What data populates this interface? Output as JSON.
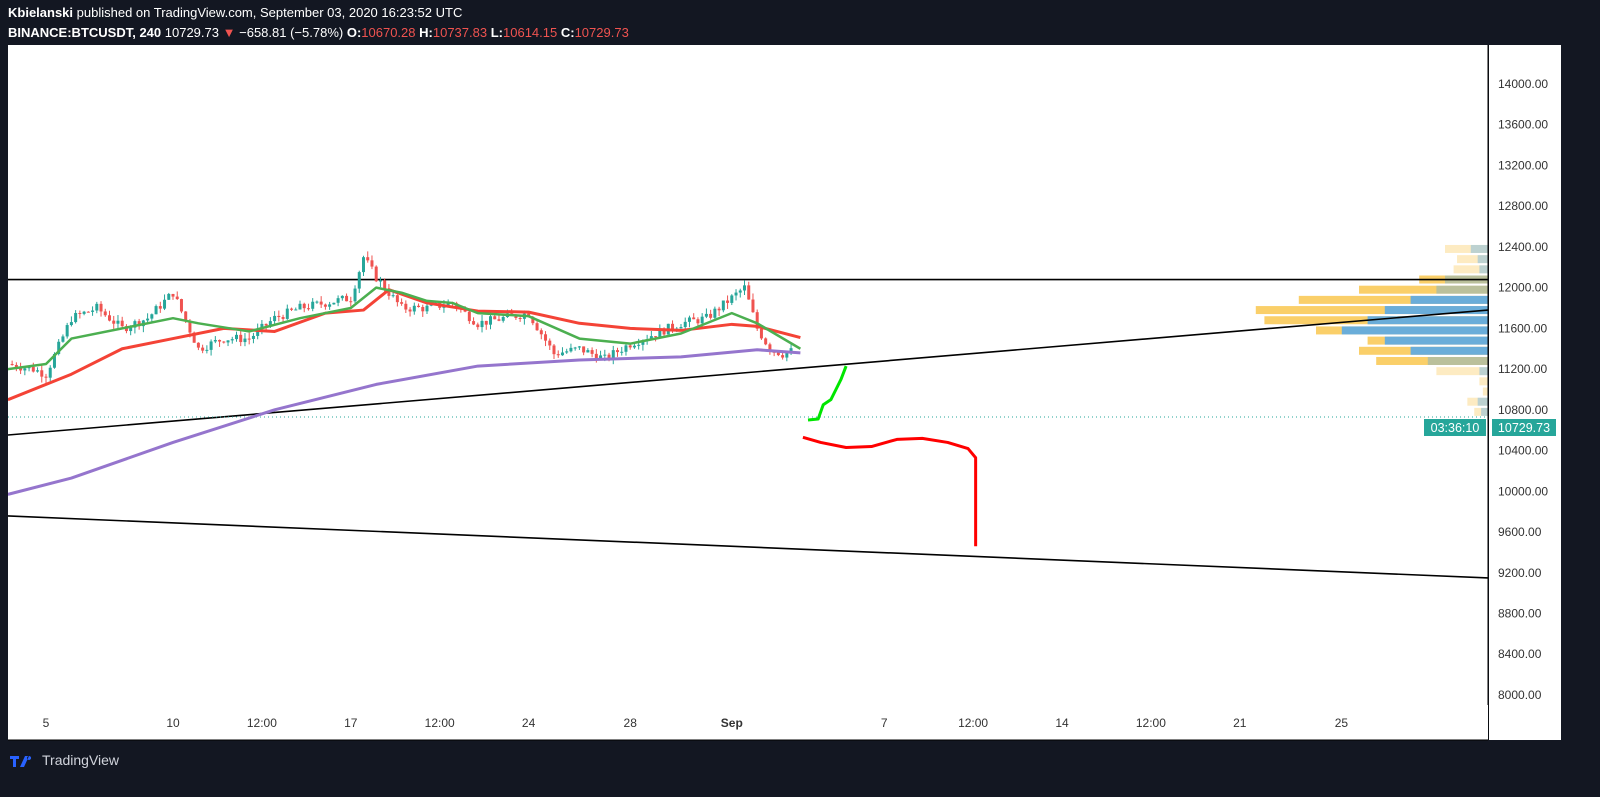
{
  "header": {
    "author": "Kbielanski",
    "published": "published on TradingView.com, September 03, 2020 16:23:52 UTC",
    "symbol": "BINANCE:BTCUSDT, 240",
    "last": "10729.73",
    "change": "−658.81 (−5.78%)",
    "o_label": "O:",
    "o": "10670.28",
    "h_label": "H:",
    "h": "10737.83",
    "l_label": "L:",
    "l": "10614.15",
    "c_label": "C:",
    "c": "10729.73"
  },
  "footer": {
    "brand": "TradingView",
    "icon": "tradingview-logo-icon"
  },
  "colors": {
    "bg": "#131722",
    "plot": "#ffffff",
    "up": "#26a69a",
    "down": "#ef5350",
    "ema_fast": "#4caf50",
    "ema_slow": "#f44336",
    "ma_long": "#9575cd",
    "drawing_up": "#00e600",
    "drawing_down": "#ff0000",
    "last_price": "#26a69a",
    "vp_up": "#5aa9e6",
    "vp_down": "#f9c74f"
  },
  "chart_data": {
    "type": "candlestick",
    "timeframe": "240",
    "y_ticks": [
      "14000.00",
      "13600.00",
      "13200.00",
      "12800.00",
      "12400.00",
      "12000.00",
      "11600.00",
      "11200.00",
      "10800.00",
      "10400.00",
      "10000.00",
      "9600.00",
      "9200.00",
      "8800.00",
      "8400.00",
      "8000.00"
    ],
    "ylim": [
      7850,
      14350
    ],
    "x_ticks": [
      {
        "day": 5,
        "label": "5"
      },
      {
        "day": 10,
        "label": "10"
      },
      {
        "day": 13.5,
        "label": "12:00"
      },
      {
        "day": 17,
        "label": "17"
      },
      {
        "day": 20.5,
        "label": "12:00"
      },
      {
        "day": 24,
        "label": "24"
      },
      {
        "day": 28,
        "label": "28"
      },
      {
        "day": 32,
        "label": "Sep"
      },
      {
        "day": 38,
        "label": "7"
      },
      {
        "day": 41.5,
        "label": "12:00"
      },
      {
        "day": 45,
        "label": "14"
      },
      {
        "day": 48.5,
        "label": "12:00"
      },
      {
        "day": 52,
        "label": "21"
      },
      {
        "day": 56,
        "label": "25"
      }
    ],
    "price_path": [
      [
        3.5,
        11250
      ],
      [
        4.5,
        11200
      ],
      [
        5,
        11150
      ],
      [
        6,
        11700
      ],
      [
        7,
        11800
      ],
      [
        8,
        11600
      ],
      [
        9,
        11700
      ],
      [
        10,
        11950
      ],
      [
        11,
        11400
      ],
      [
        12,
        11500
      ],
      [
        13,
        11500
      ],
      [
        14,
        11700
      ],
      [
        15,
        11800
      ],
      [
        16,
        11850
      ],
      [
        17,
        11900
      ],
      [
        17.5,
        12300
      ],
      [
        18,
        12100
      ],
      [
        19,
        11800
      ],
      [
        20,
        11800
      ],
      [
        21,
        11850
      ],
      [
        22,
        11650
      ],
      [
        23,
        11700
      ],
      [
        24,
        11750
      ],
      [
        25,
        11350
      ],
      [
        26,
        11400
      ],
      [
        27,
        11300
      ],
      [
        28,
        11450
      ],
      [
        29,
        11550
      ],
      [
        30,
        11650
      ],
      [
        31,
        11700
      ],
      [
        32,
        11900
      ],
      [
        32.5,
        12000
      ],
      [
        33,
        11600
      ],
      [
        33.5,
        11400
      ],
      [
        34,
        11350
      ],
      [
        34.4,
        11380
      ],
      [
        34.5,
        10730
      ]
    ],
    "ema_fast": [
      [
        3.5,
        11200
      ],
      [
        5,
        11250
      ],
      [
        6,
        11500
      ],
      [
        8,
        11600
      ],
      [
        10,
        11700
      ],
      [
        11,
        11650
      ],
      [
        13,
        11570
      ],
      [
        15,
        11700
      ],
      [
        17,
        11800
      ],
      [
        18,
        12000
      ],
      [
        19,
        11950
      ],
      [
        20,
        11870
      ],
      [
        21,
        11850
      ],
      [
        22,
        11750
      ],
      [
        24,
        11720
      ],
      [
        26,
        11500
      ],
      [
        28,
        11450
      ],
      [
        30,
        11550
      ],
      [
        32,
        11750
      ],
      [
        33,
        11650
      ],
      [
        34.7,
        11400
      ]
    ],
    "ema_slow": [
      [
        3.5,
        10900
      ],
      [
        6,
        11150
      ],
      [
        8,
        11400
      ],
      [
        10,
        11500
      ],
      [
        12,
        11600
      ],
      [
        14,
        11570
      ],
      [
        16,
        11750
      ],
      [
        17.5,
        11780
      ],
      [
        18.5,
        11980
      ],
      [
        20,
        11850
      ],
      [
        22,
        11770
      ],
      [
        24,
        11760
      ],
      [
        26,
        11650
      ],
      [
        28,
        11600
      ],
      [
        30,
        11580
      ],
      [
        32,
        11640
      ],
      [
        33,
        11620
      ],
      [
        34.7,
        11510
      ]
    ],
    "ma_long": [
      [
        3.5,
        9970
      ],
      [
        6,
        10130
      ],
      [
        10,
        10480
      ],
      [
        14,
        10800
      ],
      [
        18,
        11050
      ],
      [
        22,
        11230
      ],
      [
        26,
        11290
      ],
      [
        30,
        11320
      ],
      [
        33,
        11390
      ],
      [
        34.7,
        11360
      ]
    ],
    "trendlines": [
      {
        "from": [
          3.5,
          12080
        ],
        "to": [
          61.8,
          12080
        ]
      },
      {
        "from": [
          3.5,
          10553
        ],
        "to": [
          61.8,
          11781
        ]
      },
      {
        "from": [
          3.5,
          9758
        ],
        "to": [
          61.8,
          9149
        ]
      }
    ],
    "drawing_up": [
      [
        35,
        10700
      ],
      [
        35.4,
        10710
      ],
      [
        35.6,
        10850
      ],
      [
        35.9,
        10900
      ],
      [
        36.1,
        11000
      ],
      [
        36.3,
        11100
      ],
      [
        36.5,
        11230
      ]
    ],
    "drawing_down": [
      [
        34.8,
        10530
      ],
      [
        35.5,
        10480
      ],
      [
        36.5,
        10430
      ],
      [
        37.5,
        10440
      ],
      [
        38.5,
        10510
      ],
      [
        39.5,
        10520
      ],
      [
        40.5,
        10480
      ],
      [
        41.3,
        10420
      ],
      [
        41.6,
        10330
      ],
      [
        41.6,
        9460
      ]
    ],
    "volume_profile": [
      [
        12380,
        25,
        10
      ],
      [
        12280,
        18,
        6
      ],
      [
        12180,
        20,
        5
      ],
      [
        12080,
        40,
        25
      ],
      [
        11980,
        75,
        30
      ],
      [
        11880,
        110,
        45
      ],
      [
        11780,
        135,
        60
      ],
      [
        11680,
        130,
        70
      ],
      [
        11580,
        100,
        85
      ],
      [
        11480,
        70,
        60
      ],
      [
        11380,
        75,
        45
      ],
      [
        11280,
        65,
        35
      ],
      [
        11180,
        30,
        5
      ],
      [
        11080,
        5,
        0
      ],
      [
        10980,
        3,
        0
      ],
      [
        10880,
        12,
        6
      ],
      [
        10780,
        8,
        4
      ]
    ],
    "last_price": "10729.73",
    "countdown": "03:36:10"
  }
}
